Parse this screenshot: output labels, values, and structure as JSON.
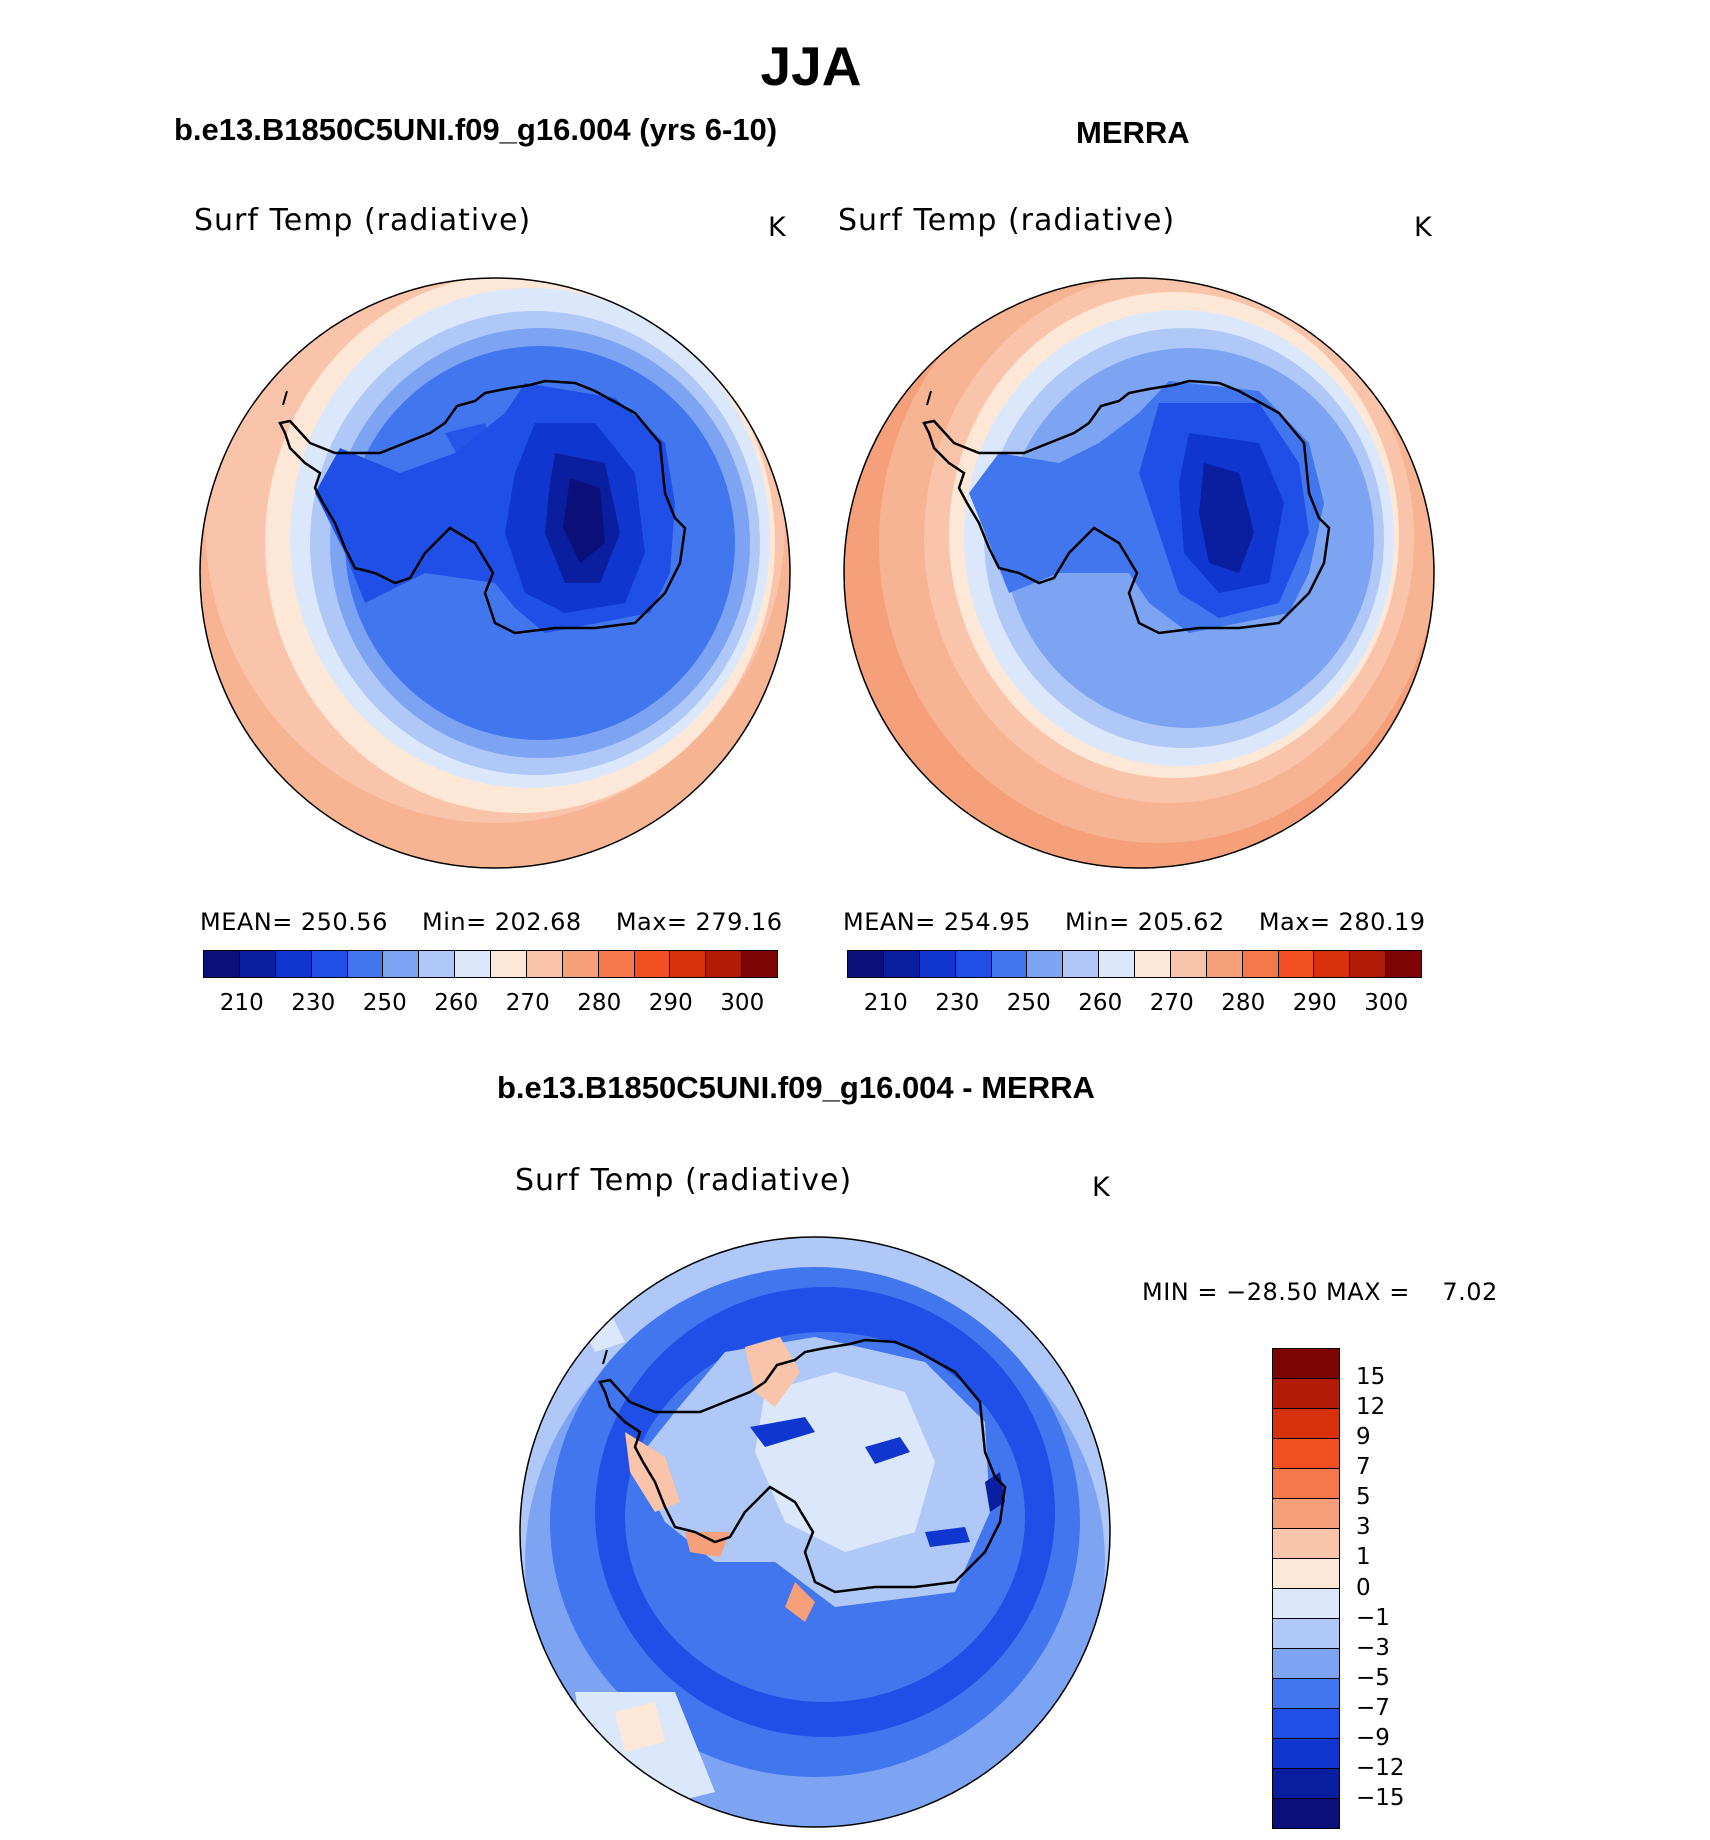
{
  "title": "JJA",
  "panels": [
    {
      "id": "model",
      "title": "b.e13.B1850C5UNI.f09_g16.004 (yrs 6-10)",
      "variable": "Surf Temp (radiative)",
      "units": "K",
      "stats": {
        "mean_label": "MEAN=",
        "mean": "250.56",
        "min_label": "Min=",
        "min": "202.68",
        "max_label": "Max=",
        "max": "279.16"
      }
    },
    {
      "id": "obs",
      "title": "MERRA",
      "variable": "Surf Temp (radiative)",
      "units": "K",
      "stats": {
        "mean_label": "MEAN=",
        "mean": "254.95",
        "min_label": "Min=",
        "min": "205.62",
        "max_label": "Max=",
        "max": "280.19"
      }
    },
    {
      "id": "diff",
      "title": "b.e13.B1850C5UNI.f09_g16.004 - MERRA",
      "variable": "Surf Temp (radiative)",
      "units": "K",
      "stats_text": "MIN = −28.50 MAX =    7.02"
    }
  ],
  "colorbar_temp": {
    "ticks": [
      "210",
      "230",
      "250",
      "260",
      "270",
      "280",
      "290",
      "300"
    ],
    "colors": [
      "#0b0f7a",
      "#0a1ea0",
      "#0f36cf",
      "#1f4fe6",
      "#4276ee",
      "#7da3f3",
      "#b0c8f7",
      "#dbe8fb",
      "#fde7d7",
      "#f9c4a9",
      "#f5a07a",
      "#f47849",
      "#f24f22",
      "#d9300c",
      "#b21b07",
      "#7d0505"
    ]
  },
  "colorbar_diff": {
    "ticks": [
      "15",
      "12",
      "9",
      "7",
      "5",
      "3",
      "1",
      "0",
      "−1",
      "−3",
      "−5",
      "−7",
      "−9",
      "−12",
      "−15"
    ],
    "colors": [
      "#7d0505",
      "#b21b07",
      "#d9300c",
      "#f24f22",
      "#f47849",
      "#f5a07a",
      "#f9c4a9",
      "#fde7d7",
      "#dbe8fb",
      "#b0c8f7",
      "#7da3f3",
      "#4276ee",
      "#1f4fe6",
      "#0f36cf",
      "#0a1ea0",
      "#0b0f7a"
    ]
  }
}
